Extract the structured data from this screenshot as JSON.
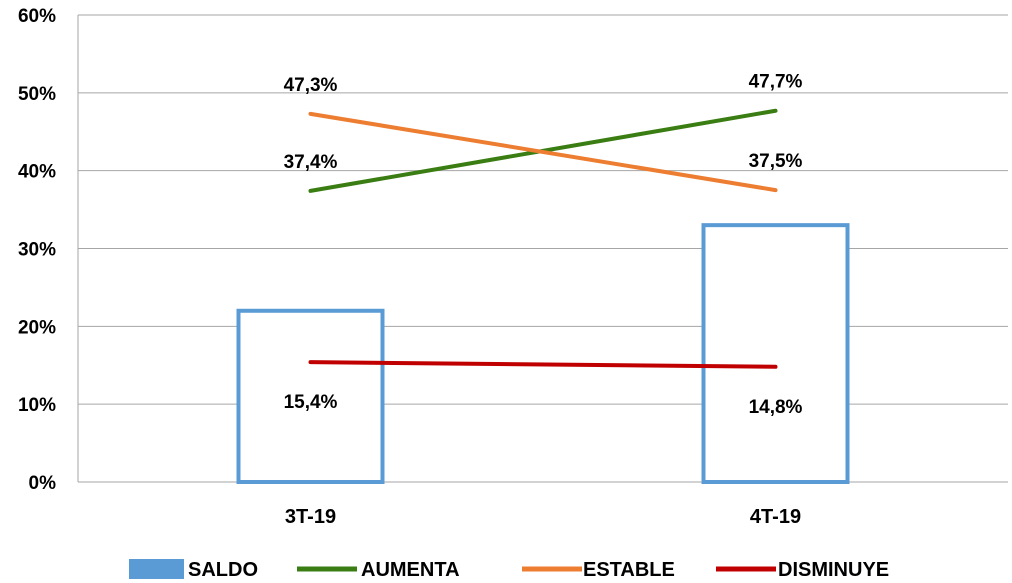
{
  "chart_data": {
    "type": "bar",
    "categories": [
      "3T-19",
      "4T-19"
    ],
    "ylim": [
      0,
      60
    ],
    "yticks": [
      "0%",
      "10%",
      "20%",
      "30%",
      "40%",
      "50%",
      "60%"
    ],
    "grid": true,
    "legend_position": "bottom",
    "bar_series": {
      "name": "SALDO",
      "values": [
        22.0,
        33.0
      ],
      "color": "#5b9bd5"
    },
    "line_series": [
      {
        "name": "AUMENTA",
        "values": [
          37.4,
          47.7
        ],
        "labels": [
          "37,4%",
          "47,7%"
        ],
        "color": "#3a7d12"
      },
      {
        "name": "ESTABLE",
        "values": [
          47.3,
          37.5
        ],
        "labels": [
          "47,3%",
          "37,5%"
        ],
        "color": "#ed7d31"
      },
      {
        "name": "DISMINUYE",
        "values": [
          15.4,
          14.8
        ],
        "labels": [
          "15,4%",
          "14,8%"
        ],
        "color": "#c00000"
      }
    ],
    "legend": [
      "SALDO",
      "AUMENTA",
      "ESTABLE",
      "DISMINUYE"
    ]
  }
}
